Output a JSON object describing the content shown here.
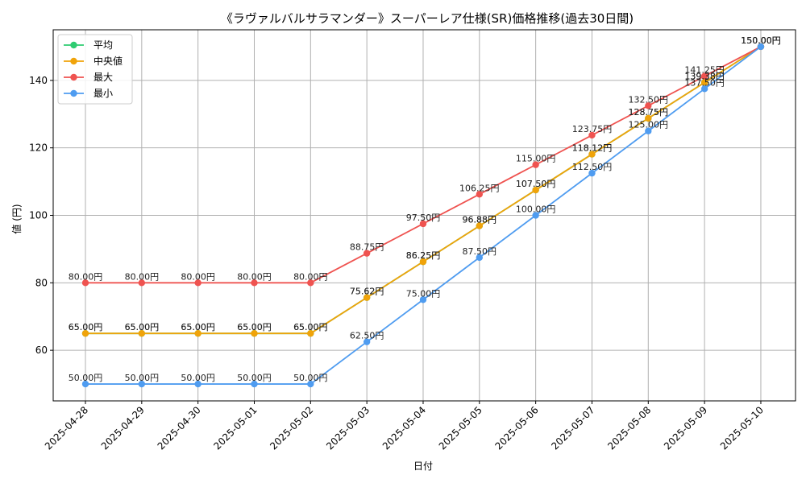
{
  "chart_data": {
    "type": "line",
    "title": "《ラヴァルバルサラマンダー》スーパーレア仕様(SR)価格推移(過去30日間)",
    "xlabel": "日付",
    "ylabel": "値 (円)",
    "value_suffix": "円",
    "ylim": [
      45,
      155
    ],
    "yticks": [
      60,
      80,
      100,
      120,
      140
    ],
    "grid": true,
    "legend_position": "top-left",
    "x": [
      "2025-04-28",
      "2025-04-29",
      "2025-04-30",
      "2025-05-01",
      "2025-05-02",
      "2025-05-03",
      "2025-05-04",
      "2025-05-05",
      "2025-05-06",
      "2025-05-07",
      "2025-05-08",
      "2025-05-09",
      "2025-05-10"
    ],
    "series": [
      {
        "name": "平均",
        "color": "#2ecc71",
        "values": [
          65.0,
          65.0,
          65.0,
          65.0,
          65.0,
          75.62,
          86.25,
          96.88,
          107.5,
          118.12,
          128.75,
          139.38,
          150.0
        ]
      },
      {
        "name": "中央値",
        "color": "#f0a30a",
        "values": [
          65.0,
          65.0,
          65.0,
          65.0,
          65.0,
          75.62,
          86.25,
          96.88,
          107.5,
          118.12,
          128.75,
          139.38,
          150.0
        ]
      },
      {
        "name": "最大",
        "color": "#ef5350",
        "values": [
          80.0,
          80.0,
          80.0,
          80.0,
          80.0,
          88.75,
          97.5,
          106.25,
          115.0,
          123.75,
          132.5,
          141.25,
          150.0
        ]
      },
      {
        "name": "最小",
        "color": "#4f9cf0",
        "values": [
          50.0,
          50.0,
          50.0,
          50.0,
          50.0,
          62.5,
          75.0,
          87.5,
          100.0,
          112.5,
          125.0,
          137.5,
          150.0
        ]
      }
    ]
  }
}
